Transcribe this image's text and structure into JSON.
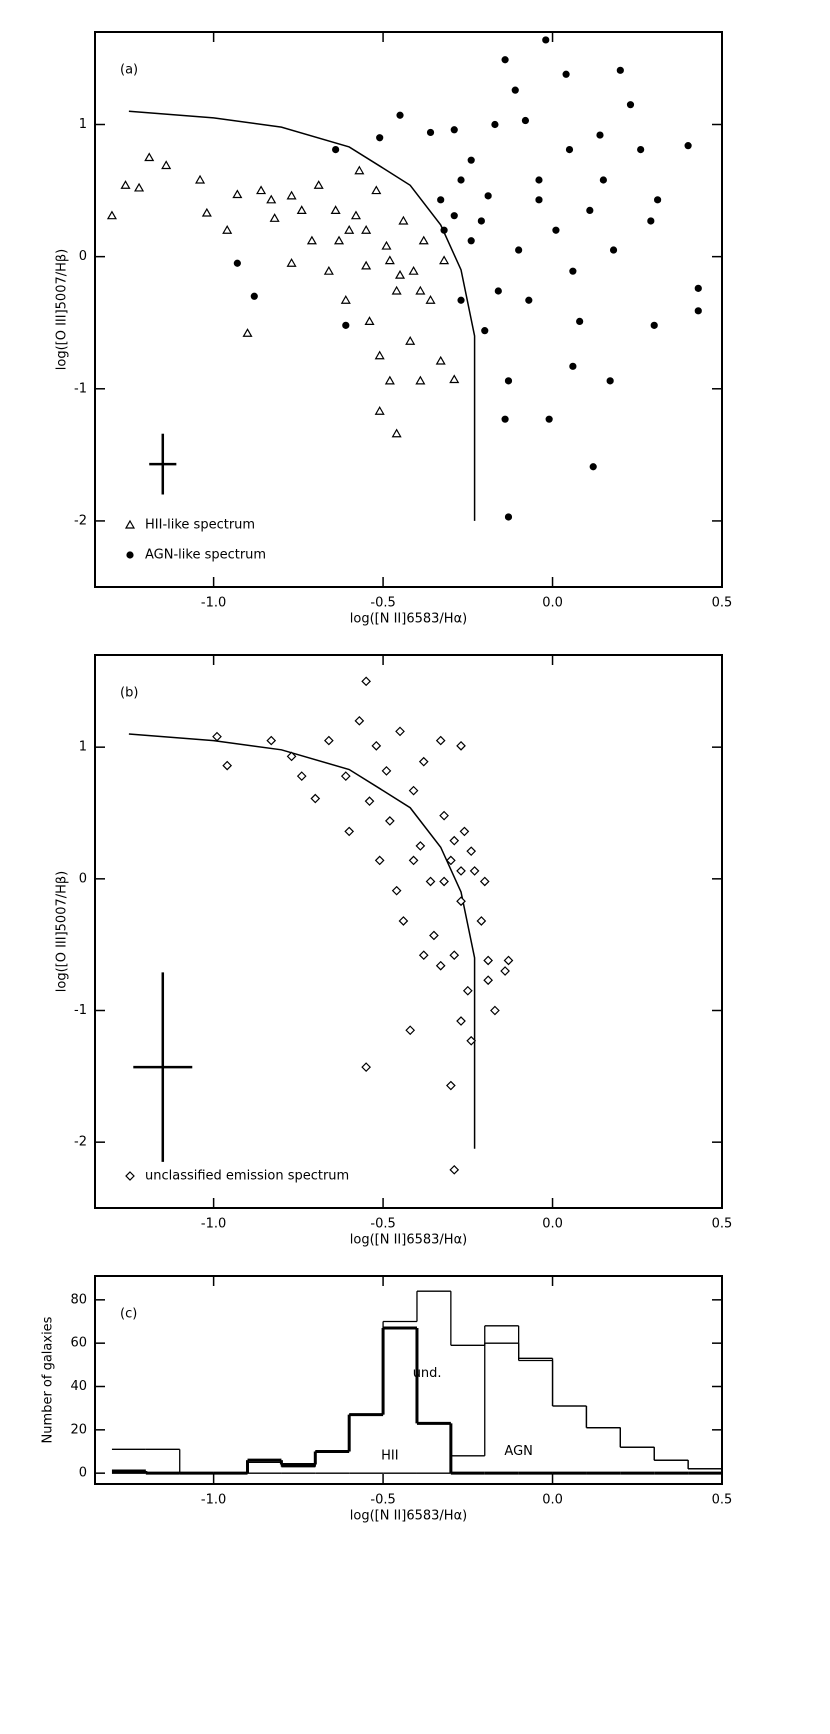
{
  "chart_data": [
    {
      "type": "scatter",
      "label": "(a)",
      "xlabel": "log([N II]6583/Hα)",
      "ylabel": "log([O III]5007/Hβ)",
      "xlim": [
        -1.35,
        0.5
      ],
      "ylim": [
        -2.5,
        1.7
      ],
      "xticks": [
        {
          "value": -1.0,
          "label": "-1.0"
        },
        -0.5,
        {
          "value": 0,
          "label": "0.0"
        },
        0.5
      ],
      "yticks": [
        -2,
        -1,
        0,
        1
      ],
      "curve": {
        "x": [
          -1.25,
          -1.0,
          -0.8,
          -0.6,
          -0.5,
          -0.42,
          -0.33,
          -0.27,
          -0.23,
          -0.23
        ],
        "y": [
          1.1,
          1.05,
          0.98,
          0.83,
          0.67,
          0.54,
          0.24,
          -0.1,
          -0.6,
          -2.0
        ]
      },
      "errorbar": {
        "x": -1.15,
        "y": -1.57,
        "xerr": 0.04,
        "yerr": 0.23
      },
      "series": [
        {
          "name": "HII-like spectrum",
          "marker": "triangle",
          "color": "#000",
          "x": [
            -1.3,
            -1.26,
            -1.22,
            -1.19,
            -1.14,
            -1.04,
            -1.02,
            -0.96,
            -0.93,
            -0.9,
            -0.86,
            -0.82,
            -0.77,
            -0.74,
            -0.71,
            -0.69,
            -0.66,
            -0.64,
            -0.61,
            -0.6,
            -0.57,
            -0.55,
            -0.54,
            -0.52,
            -0.51,
            -0.51,
            -0.49,
            -0.48,
            -0.46,
            -0.46,
            -0.44,
            -0.42,
            -0.41,
            -0.39,
            -0.38,
            -0.36,
            -0.33,
            -0.32,
            -0.29,
            -0.48,
            -0.45,
            -0.55,
            -0.58,
            -0.39,
            -0.63,
            -0.77,
            -0.83
          ],
          "values": [
            0.31,
            0.54,
            0.52,
            0.75,
            0.69,
            0.58,
            0.33,
            0.2,
            0.47,
            -0.58,
            0.5,
            0.29,
            -0.05,
            0.35,
            0.12,
            0.54,
            -0.11,
            0.35,
            -0.33,
            0.2,
            0.65,
            -0.07,
            -0.49,
            0.5,
            -0.75,
            -1.17,
            0.08,
            -0.94,
            -0.26,
            -1.34,
            0.27,
            -0.64,
            -0.11,
            -0.94,
            0.12,
            -0.33,
            -0.79,
            -0.03,
            -0.93,
            -0.03,
            -0.14,
            0.2,
            0.31,
            -0.26,
            0.12,
            0.46,
            0.43
          ]
        },
        {
          "name": "AGN-like spectrum",
          "marker": "circle",
          "color": "#000",
          "x": [
            -0.88,
            -0.93,
            -0.64,
            -0.61,
            -0.51,
            -0.45,
            -0.36,
            -0.29,
            -0.33,
            -0.27,
            -0.24,
            -0.21,
            -0.19,
            -0.17,
            -0.14,
            -0.11,
            -0.1,
            -0.08,
            -0.07,
            -0.04,
            -0.02,
            0.01,
            0.04,
            0.05,
            0.06,
            0.08,
            0.11,
            0.14,
            0.15,
            0.18,
            0.2,
            0.23,
            0.26,
            0.29,
            0.31,
            0.4,
            0.43,
            0.43,
            0.3,
            -0.04,
            -0.13,
            -0.14,
            -0.01,
            -0.13,
            0.12,
            0.17,
            0.06,
            -0.24,
            -0.2,
            -0.16,
            -0.27,
            -0.29,
            -0.32
          ],
          "values": [
            -0.3,
            -0.05,
            0.81,
            -0.52,
            0.9,
            1.07,
            0.94,
            0.96,
            0.43,
            0.58,
            0.73,
            0.27,
            0.46,
            1.0,
            1.49,
            1.26,
            0.05,
            1.03,
            -0.33,
            0.58,
            1.64,
            0.2,
            1.38,
            0.81,
            -0.11,
            -0.49,
            0.35,
            0.92,
            0.58,
            0.05,
            1.41,
            1.15,
            0.81,
            0.27,
            0.43,
            0.84,
            -0.24,
            -0.41,
            -0.52,
            0.43,
            -0.94,
            -1.23,
            -1.23,
            -1.97,
            -1.59,
            -0.94,
            -0.83,
            0.12,
            -0.56,
            -0.26,
            -0.33,
            0.31,
            0.2
          ]
        }
      ]
    },
    {
      "type": "scatter",
      "label": "(b)",
      "xlabel": "log([N II]6583/Hα)",
      "ylabel": "log([O III]5007/Hβ)",
      "xlim": [
        -1.35,
        0.5
      ],
      "ylim": [
        -2.5,
        1.7
      ],
      "xticks": [
        {
          "value": -1.0,
          "label": "-1.0"
        },
        -0.5,
        {
          "value": 0,
          "label": "0.0"
        },
        0.5
      ],
      "yticks": [
        -2,
        -1,
        0,
        1
      ],
      "curve": {
        "x": [
          -1.25,
          -1.0,
          -0.8,
          -0.6,
          -0.5,
          -0.42,
          -0.33,
          -0.27,
          -0.23,
          -0.23
        ],
        "y": [
          1.1,
          1.05,
          0.98,
          0.83,
          0.67,
          0.54,
          0.24,
          -0.1,
          -0.6,
          -2.05
        ]
      },
      "errorbar": {
        "x": -1.15,
        "y": -1.43,
        "xerr": 0.087,
        "yerr": 0.72
      },
      "series": [
        {
          "name": "unclassified emission spectrum",
          "marker": "diamond",
          "color": "#000",
          "x": [
            -0.99,
            -0.96,
            -0.83,
            -0.77,
            -0.74,
            -0.7,
            -0.66,
            -0.61,
            -0.6,
            -0.57,
            -0.55,
            -0.54,
            -0.52,
            -0.51,
            -0.49,
            -0.48,
            -0.46,
            -0.45,
            -0.44,
            -0.42,
            -0.41,
            -0.39,
            -0.38,
            -0.36,
            -0.35,
            -0.33,
            -0.32,
            -0.3,
            -0.29,
            -0.27,
            -0.27,
            -0.26,
            -0.25,
            -0.24,
            -0.23,
            -0.21,
            -0.2,
            -0.19,
            -0.17,
            -0.14,
            -0.3,
            -0.55,
            -0.29,
            -0.27,
            -0.33,
            -0.38,
            -0.41,
            -0.32,
            -0.27,
            -0.29,
            -0.24,
            -0.13,
            -0.19
          ],
          "values": [
            1.08,
            0.86,
            1.05,
            0.93,
            0.78,
            0.61,
            1.05,
            0.78,
            0.36,
            1.2,
            1.5,
            0.59,
            1.01,
            0.14,
            0.82,
            0.44,
            -0.09,
            1.12,
            -0.32,
            -1.15,
            0.67,
            0.25,
            0.89,
            -0.02,
            -0.43,
            1.05,
            0.48,
            0.14,
            -0.58,
            1.01,
            -0.17,
            0.36,
            -0.85,
            -1.23,
            0.06,
            -0.32,
            -0.02,
            -0.62,
            -1.0,
            -0.7,
            -1.57,
            -1.43,
            -2.21,
            -1.08,
            -0.66,
            -0.58,
            0.14,
            -0.02,
            0.06,
            0.29,
            0.21,
            -0.62,
            -0.77
          ]
        }
      ]
    },
    {
      "type": "histogram",
      "label": "(c)",
      "xlabel": "log([N II]6583/Hα)",
      "ylabel": "Number of galaxies",
      "xlim": [
        -1.35,
        0.5
      ],
      "ylim": [
        -5,
        91
      ],
      "xticks": [
        {
          "value": -1.0,
          "label": "-1.0"
        },
        -0.5,
        {
          "value": 0,
          "label": "0.0"
        },
        0.5
      ],
      "yticks": [
        0,
        20,
        40,
        60,
        80
      ],
      "bins": [
        -1.3,
        -1.2,
        -1.1,
        -1.0,
        -0.9,
        -0.8,
        -0.7,
        -0.6,
        -0.5,
        -0.4,
        -0.3,
        -0.2,
        -0.1,
        0.0,
        0.1,
        0.2,
        0.3,
        0.4,
        0.5
      ],
      "annotations": [
        "HII",
        "und.",
        "AGN"
      ],
      "series": [
        {
          "color": "#000",
          "width": 3,
          "values": [
            1,
            0,
            0,
            0,
            6,
            4,
            10,
            27,
            67,
            23,
            0,
            0,
            0,
            0,
            0,
            0,
            0,
            0
          ]
        },
        {
          "color": "#000",
          "width": 1.3,
          "values": [
            11,
            11,
            0,
            0,
            5,
            3,
            10,
            27,
            70,
            84,
            59,
            68,
            53,
            31,
            21,
            12,
            6,
            2
          ]
        },
        {
          "color": "#000",
          "width": 1.3,
          "values": [
            0,
            0,
            0,
            0,
            0,
            0,
            0,
            0,
            0,
            0,
            8,
            60,
            52,
            31,
            21,
            12,
            6,
            2
          ]
        }
      ]
    }
  ]
}
